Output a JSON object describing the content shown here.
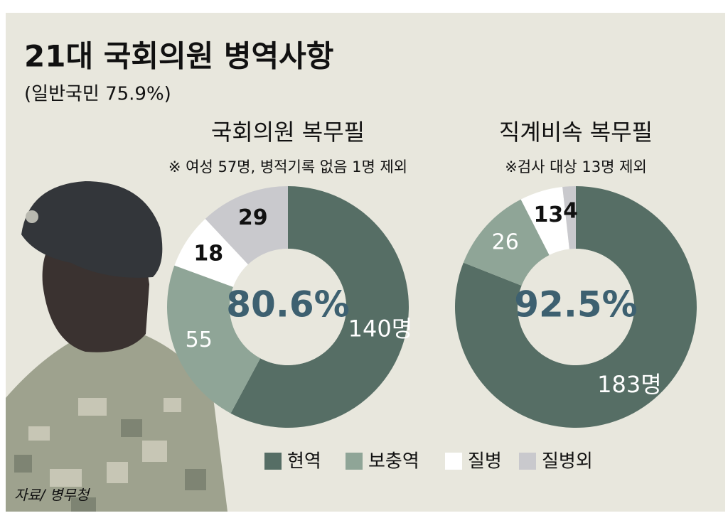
{
  "title": "21대 국회의원 병역사항",
  "subtitle": "(일반국민 75.9%)",
  "source": "자료/ 병무청",
  "chart_data": [
    {
      "type": "pie",
      "title": "국회의원 복무필",
      "subtitle": "※ 여성 57명, 병적기록 없음 1명 제외",
      "center_label": "80.6%",
      "categories": [
        "현역",
        "보충역",
        "질병",
        "질병외"
      ],
      "values": [
        140,
        55,
        18,
        29
      ],
      "value_labels": [
        "140명",
        "55",
        "18",
        "29"
      ],
      "colors": [
        "#566e65",
        "#8fa597",
        "#ffffff",
        "#c9c9cd"
      ]
    },
    {
      "type": "pie",
      "title": "직계비속 복무필",
      "subtitle": "※검사 대상 13명 제외",
      "center_label": "92.5%",
      "categories": [
        "현역",
        "보충역",
        "질병",
        "질병외"
      ],
      "values": [
        183,
        26,
        13,
        4
      ],
      "value_labels": [
        "183명",
        "26",
        "13",
        "4"
      ],
      "colors": [
        "#566e65",
        "#8fa597",
        "#ffffff",
        "#c9c9cd"
      ]
    }
  ]
}
